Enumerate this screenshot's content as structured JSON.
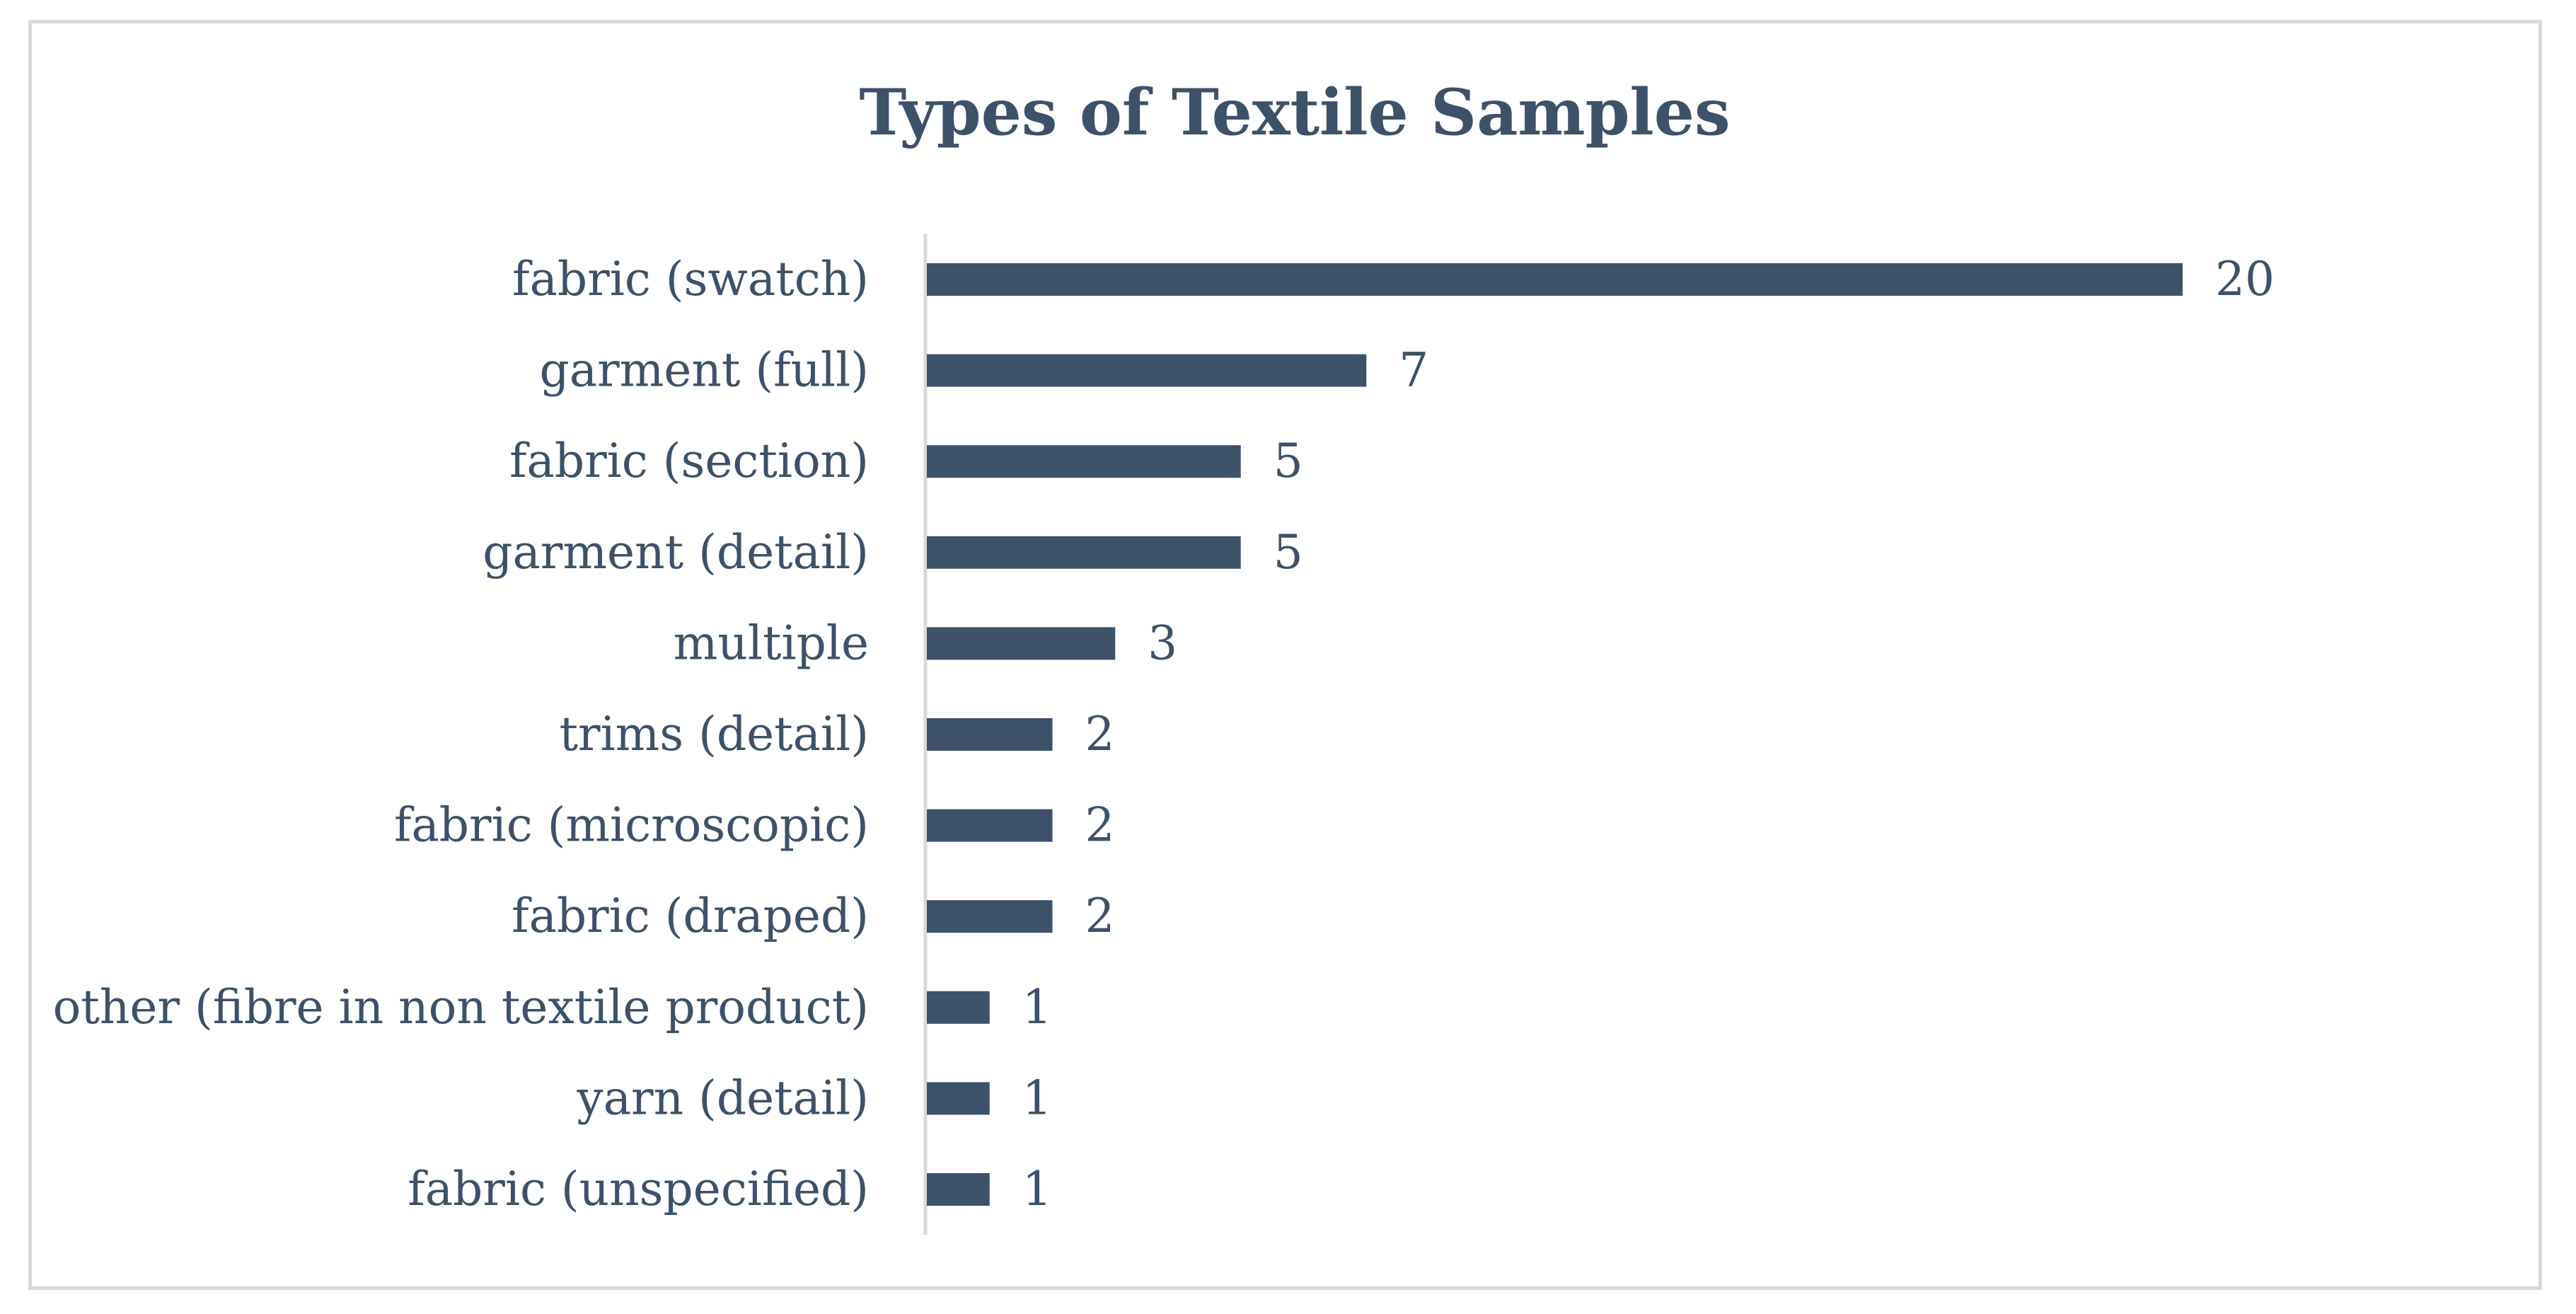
{
  "chart_data": {
    "type": "bar",
    "orientation": "horizontal",
    "title": "Types of Textile Samples",
    "categories": [
      "fabric (swatch)",
      "garment (full)",
      "fabric (section)",
      "garment (detail)",
      "multiple",
      "trims (detail)",
      "fabric (microscopic)",
      "fabric (draped)",
      "other (fibre in non textile product)",
      "yarn (detail)",
      "fabric (unspecified)"
    ],
    "values": [
      20,
      7,
      5,
      5,
      3,
      2,
      2,
      2,
      1,
      1,
      1
    ],
    "xlim": [
      0,
      20
    ],
    "xlabel": "",
    "ylabel": "",
    "grid": false,
    "legend": "none",
    "data_labels": true,
    "colors": {
      "bar": "#3d5168",
      "text": "#3d5168",
      "axis": "#d9d9d9",
      "border": "#d9d9d9"
    }
  }
}
